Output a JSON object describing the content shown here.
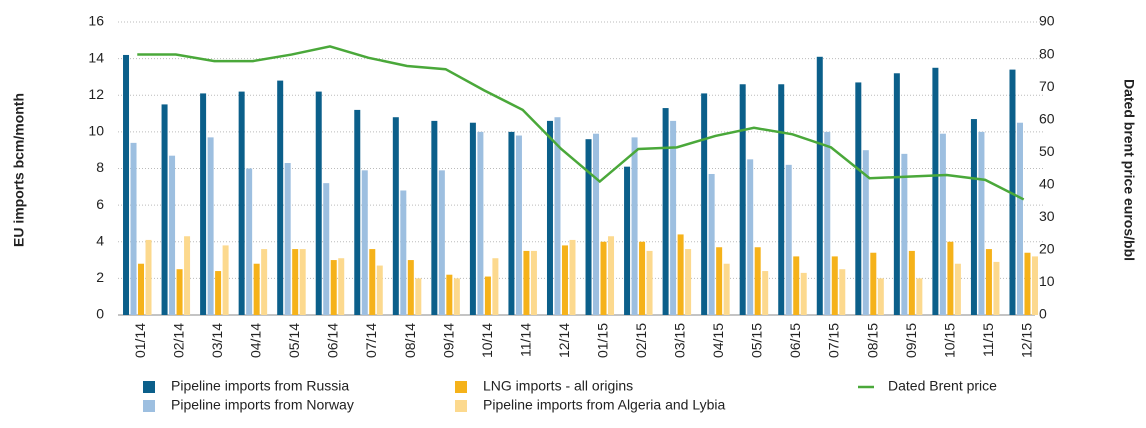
{
  "chart_data": {
    "type": "bar",
    "y_label": "EU imports bcm/month",
    "y2_label": "Dated brent price euros/bbl",
    "categories": [
      "01/14",
      "02/14",
      "03/14",
      "04/14",
      "05/14",
      "06/14",
      "07/14",
      "08/14",
      "09/14",
      "10/14",
      "11/14",
      "12/14",
      "01/15",
      "02/15",
      "03/15",
      "04/15",
      "05/15",
      "06/15",
      "07/15",
      "08/15",
      "09/15",
      "10/15",
      "11/15",
      "12/15"
    ],
    "series": [
      {
        "name": "Pipeline imports from Russia",
        "color": "#0b5f8a",
        "values": [
          14.2,
          11.5,
          12.1,
          12.2,
          12.8,
          12.2,
          11.2,
          10.8,
          10.6,
          10.5,
          10.0,
          10.6,
          9.6,
          8.1,
          11.3,
          12.1,
          12.6,
          12.6,
          14.1,
          12.7,
          13.2,
          13.5,
          10.7,
          13.4
        ]
      },
      {
        "name": "Pipeline imports from Norway",
        "color": "#9dbfe0",
        "values": [
          9.4,
          8.7,
          9.7,
          8.0,
          8.3,
          7.2,
          7.9,
          6.8,
          7.9,
          10.0,
          9.8,
          10.8,
          9.9,
          9.7,
          10.6,
          7.7,
          8.5,
          8.2,
          10.0,
          9.0,
          8.8,
          9.9,
          10.0,
          10.5
        ]
      },
      {
        "name": "LNG imports - all origins",
        "color": "#f5b21a",
        "values": [
          2.8,
          2.5,
          2.4,
          2.8,
          3.6,
          3.0,
          3.6,
          3.0,
          2.2,
          2.1,
          3.5,
          3.8,
          4.0,
          4.0,
          4.4,
          3.7,
          3.7,
          3.2,
          3.2,
          3.4,
          3.5,
          4.0,
          3.6,
          3.4
        ]
      },
      {
        "name": "Pipeline imports from Algeria and Lybia",
        "color": "#fcd98e",
        "values": [
          4.1,
          4.3,
          3.8,
          3.6,
          3.6,
          3.1,
          2.7,
          2.0,
          2.0,
          3.1,
          3.5,
          4.1,
          4.3,
          3.5,
          3.6,
          2.8,
          2.4,
          2.3,
          2.5,
          2.0,
          2.0,
          2.8,
          2.9,
          3.2
        ]
      },
      {
        "name": "Dated Brent price",
        "color": "#4aa83a",
        "type": "line",
        "axis": "y2",
        "values": [
          80,
          80,
          78,
          78,
          80,
          82.5,
          79,
          76.5,
          75.5,
          69,
          63,
          51,
          41,
          51,
          51.5,
          55,
          57.5,
          55.5,
          51.5,
          42,
          42.5,
          43,
          41.5,
          35.5
        ]
      }
    ],
    "ylim": [
      0,
      16
    ],
    "yticks": [
      0,
      2,
      4,
      6,
      8,
      10,
      12,
      14,
      16
    ],
    "y2lim": [
      0,
      90
    ],
    "y2ticks": [
      0,
      10,
      20,
      30,
      40,
      50,
      60,
      70,
      80,
      90
    ],
    "grid": true,
    "legend": "bottom"
  }
}
